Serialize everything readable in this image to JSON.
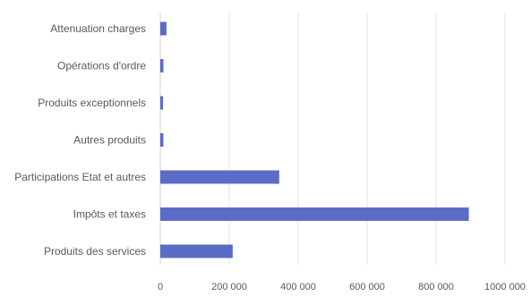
{
  "chart_data": {
    "type": "bar",
    "orientation": "horizontal",
    "categories": [
      "Attenuation charges",
      "Opérations d'ordre",
      "Produits exceptionnels",
      "Autres produits",
      "Participations Etat et autres",
      "Impôts et taxes",
      "Produits des services"
    ],
    "values": [
      18000,
      9000,
      8000,
      9000,
      345000,
      895000,
      210000
    ],
    "xlim": [
      0,
      1000000
    ],
    "xticks": [
      0,
      200000,
      400000,
      600000,
      800000,
      1000000
    ],
    "xtick_labels": [
      "0",
      "200 000",
      "400 000",
      "600 000",
      "800 000",
      "1000 000"
    ],
    "title": "",
    "xlabel": "",
    "ylabel": "",
    "grid": "vertical",
    "legend": "none",
    "bar_color": "#5b6cc6"
  }
}
